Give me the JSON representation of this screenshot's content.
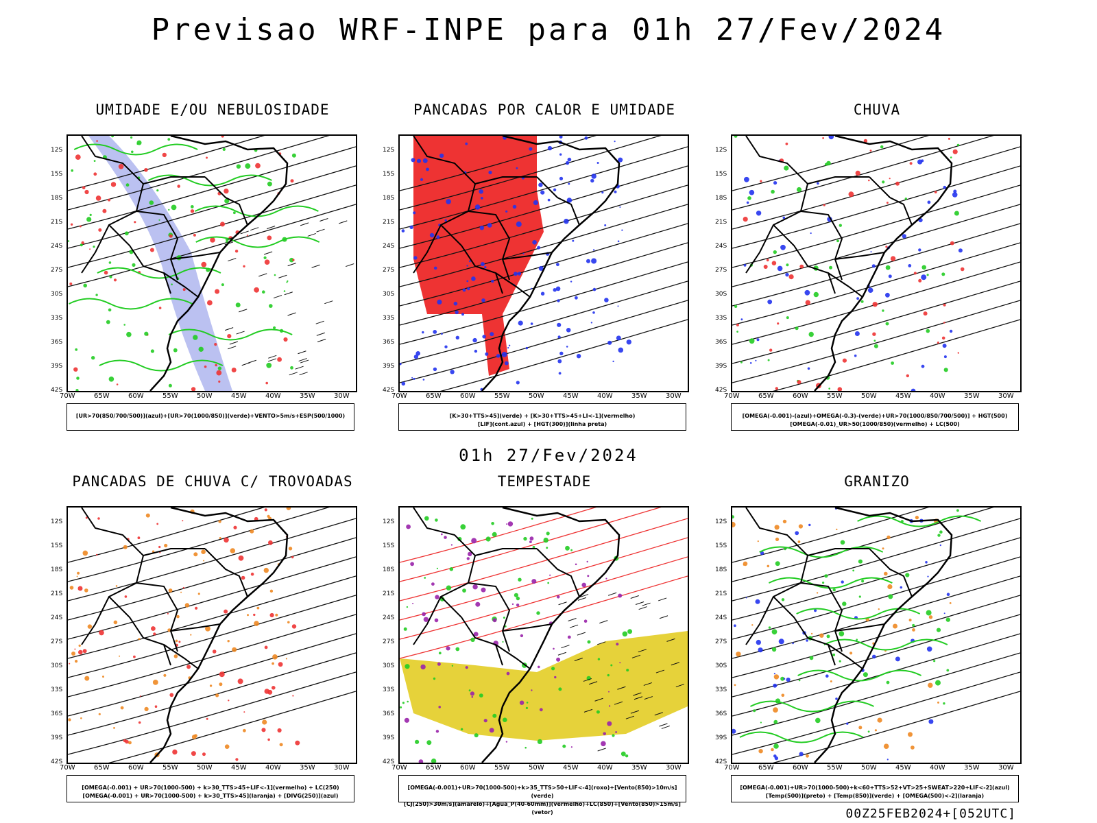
{
  "header": {
    "title": "Previsao WRF-INPE  para 01h 27/Fev/2024"
  },
  "middle": {
    "title": "01h 27/Fev/2024"
  },
  "footer": {
    "run": "00Z25FEB2024+[052UTC]"
  },
  "axes": {
    "lat_labels": [
      "12S",
      "15S",
      "18S",
      "21S",
      "24S",
      "27S",
      "30S",
      "33S",
      "36S",
      "39S",
      "42S"
    ],
    "lon_labels": [
      "70W",
      "65W",
      "60W",
      "55W",
      "50W",
      "45W",
      "40W",
      "35W",
      "30W"
    ]
  },
  "panels": [
    {
      "title": "UMIDADE E/OU NEBULOSIDADE",
      "legend": [
        "[UR>70(850/700/500)](azul)+[UR>70(1000/850)](verde)+VENTO>5m/s+ESP(500/1000)"
      ]
    },
    {
      "title": "PANCADAS POR CALOR E UMIDADE",
      "legend": [
        "[K>30+TTS>45](verde) + [K>30+TTS>45+LI<-1](vermelho)",
        "[LIF](cont.azul) + [HGT(300)](linha preta)"
      ]
    },
    {
      "title": "CHUVA",
      "legend": [
        "[OMEGA(-0.001)-(azul)+OMEGA(-0.3)-(verde)+UR>70(1000/850/700/500)] + HGT(500)",
        "[OMEGA(-0.01)_UR>50(1000/850)(vermelho) + LC(500)"
      ]
    },
    {
      "title": "PANCADAS DE CHUVA C/ TROVOADAS",
      "legend": [
        "[OMEGA(-0.001) + UR>70(1000-500) + k>30_TTS>45+LIF<-1](vermelho) + LC(250)",
        "[OMEGA(-0.001) + UR>70(1000-500) + k>30_TTS>45](laranja) + [DIVG(250)](azul)"
      ]
    },
    {
      "title": "TEMPESTADE",
      "legend": [
        "[OMEGA(-0.001)+UR>70(1000-500)+k>35_TTS>50+LIF<-4](roxo)+[Vento(850)>10m/s](verde)",
        "[CJ(250)>30m/s](amarelo)+[Agua_P(40-60mm)](vermelho)+LC(850)+[Vento(850)>15m/s](vetor)"
      ]
    },
    {
      "title": "GRANIZO",
      "legend": [
        "[OMEGA(-0.001)+UR>70(1000-500)+k<60+TTS>52+VT>25+SWEAT>220+LIF<-2](azul)",
        "[Temp(500)](preto) + [Temp(850)](verde) + [OMEGA(500)<-2](laranja)"
      ]
    }
  ],
  "colors": {
    "blue": "#2233ee",
    "green": "#22cc22",
    "red": "#ee3333",
    "orange": "#ee8822",
    "yellow": "#e6d23a",
    "purple": "#9922aa",
    "lightblue": "#aab2ee"
  }
}
